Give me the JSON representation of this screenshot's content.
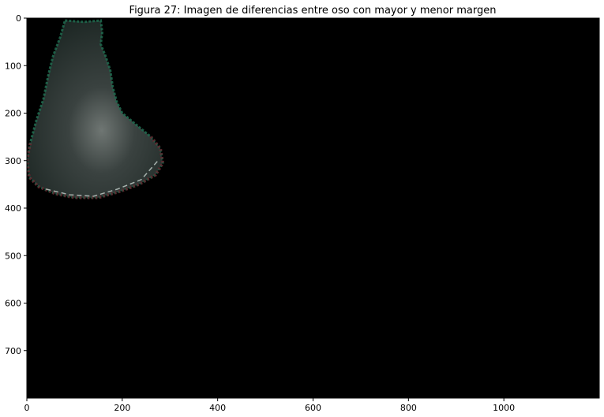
{
  "chart_data": {
    "type": "heatmap",
    "title": "Figura 27: Imagen de diferencias entre oso con mayor y menor margen",
    "xlabel": "",
    "ylabel": "",
    "image_width": 1200,
    "image_height": 800,
    "xlim": [
      0,
      1200
    ],
    "ylim": [
      800,
      0
    ],
    "x_ticks": [
      0,
      200,
      400,
      600,
      800,
      1000
    ],
    "y_ticks": [
      0,
      100,
      200,
      300,
      400,
      500,
      600,
      700
    ],
    "x_tick_labels": [
      "0",
      "200",
      "400",
      "600",
      "800",
      "1000"
    ],
    "y_tick_labels": [
      "0",
      "100",
      "200",
      "300",
      "400",
      "500",
      "600",
      "700"
    ],
    "grid": false,
    "background_color": "#000000",
    "region_colors": {
      "body_fill": "#2c3330",
      "edge_green": "#1f6b4f",
      "edge_red": "#6a1f2a",
      "highlight": "#d8e6e0"
    },
    "bear_outline": [
      [
        80,
        5
      ],
      [
        120,
        8
      ],
      [
        155,
        5
      ],
      [
        158,
        30
      ],
      [
        155,
        55
      ],
      [
        165,
        80
      ],
      [
        175,
        110
      ],
      [
        180,
        145
      ],
      [
        188,
        175
      ],
      [
        200,
        200
      ],
      [
        230,
        225
      ],
      [
        260,
        250
      ],
      [
        280,
        275
      ],
      [
        285,
        305
      ],
      [
        270,
        330
      ],
      [
        235,
        350
      ],
      [
        195,
        365
      ],
      [
        150,
        378
      ],
      [
        100,
        378
      ],
      [
        60,
        370
      ],
      [
        25,
        355
      ],
      [
        5,
        335
      ],
      [
        0,
        300
      ],
      [
        8,
        260
      ],
      [
        20,
        215
      ],
      [
        35,
        170
      ],
      [
        45,
        120
      ],
      [
        55,
        80
      ],
      [
        70,
        40
      ]
    ]
  }
}
